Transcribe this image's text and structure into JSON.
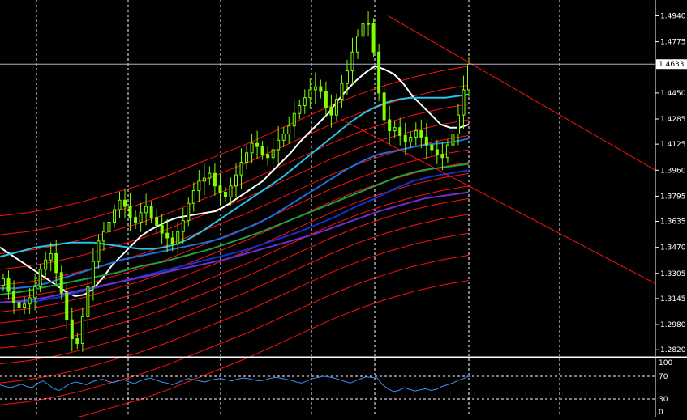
{
  "chart_data": [
    {
      "type": "candlestick",
      "panel": "main",
      "grid": true,
      "background": "#000000",
      "ylim": [
        1.278,
        1.504
      ],
      "y_ticks": [
        "1.4940",
        "1.4775",
        "1.4450",
        "1.4285",
        "1.4125",
        "1.3960",
        "1.3795",
        "1.3635",
        "1.3470",
        "1.3305",
        "1.3145",
        "1.2980",
        "1.2820"
      ],
      "current_price": "1.4633",
      "current_price_value": 1.4633,
      "candle_color": "#7fff00",
      "close_series": [
        1.327,
        1.319,
        1.312,
        1.309,
        1.311,
        1.315,
        1.322,
        1.333,
        1.339,
        1.343,
        1.331,
        1.318,
        1.301,
        1.289,
        1.286,
        1.303,
        1.322,
        1.338,
        1.351,
        1.357,
        1.363,
        1.371,
        1.377,
        1.373,
        1.366,
        1.363,
        1.369,
        1.373,
        1.366,
        1.361,
        1.356,
        1.353,
        1.349,
        1.357,
        1.364,
        1.375,
        1.383,
        1.389,
        1.391,
        1.394,
        1.386,
        1.382,
        1.379,
        1.386,
        1.393,
        1.401,
        1.407,
        1.413,
        1.411,
        1.406,
        1.404,
        1.409,
        1.415,
        1.419,
        1.424,
        1.432,
        1.437,
        1.442,
        1.447,
        1.449,
        1.446,
        1.436,
        1.431,
        1.441,
        1.451,
        1.459,
        1.471,
        1.481,
        1.489,
        1.489,
        1.471,
        1.445,
        1.428,
        1.421,
        1.423,
        1.418,
        1.414,
        1.417,
        1.421,
        1.417,
        1.412,
        1.409,
        1.406,
        1.404,
        1.412,
        1.419,
        1.431,
        1.447,
        1.4633
      ],
      "overlays": [
        {
          "name": "white",
          "color": "#ffffff",
          "values": [
            1.347,
            1.343,
            1.339,
            1.335,
            1.331,
            1.327,
            1.323,
            1.319,
            1.316,
            1.317,
            1.321,
            1.328,
            1.336,
            1.342,
            1.348,
            1.354,
            1.358,
            1.361,
            1.364,
            1.366,
            1.367,
            1.368,
            1.369,
            1.37,
            1.373,
            1.377,
            1.381,
            1.385,
            1.389,
            1.395,
            1.401,
            1.407,
            1.414,
            1.42,
            1.426,
            1.432,
            1.44,
            1.447,
            1.453,
            1.458,
            1.462,
            1.46,
            1.457,
            1.451,
            1.443,
            1.437,
            1.431,
            1.425,
            1.423,
            1.423,
            1.425
          ]
        },
        {
          "name": "cyan",
          "color": "#28c4e8",
          "values": [
            1.341,
            1.343,
            1.345,
            1.347,
            1.348,
            1.349,
            1.35,
            1.35,
            1.35,
            1.349,
            1.348,
            1.347,
            1.346,
            1.346,
            1.347,
            1.349,
            1.352,
            1.356,
            1.361,
            1.366,
            1.371,
            1.376,
            1.381,
            1.386,
            1.391,
            1.397,
            1.403,
            1.409,
            1.415,
            1.421,
            1.427,
            1.432,
            1.436,
            1.439,
            1.441,
            1.442,
            1.442,
            1.442,
            1.442,
            1.443,
            1.444
          ]
        },
        {
          "name": "blue",
          "color": "#1e6fe0",
          "values": [
            1.321,
            1.321,
            1.322,
            1.324,
            1.327,
            1.33,
            1.333,
            1.336,
            1.339,
            1.341,
            1.343,
            1.345,
            1.347,
            1.349,
            1.351,
            1.354,
            1.358,
            1.362,
            1.367,
            1.373,
            1.379,
            1.385,
            1.391,
            1.397,
            1.402,
            1.406,
            1.408,
            1.41,
            1.412,
            1.413,
            1.414,
            1.416
          ]
        },
        {
          "name": "navy",
          "color": "#1530d0",
          "values": [
            1.312,
            1.312,
            1.313,
            1.315,
            1.318,
            1.321,
            1.324,
            1.327,
            1.33,
            1.333,
            1.336,
            1.339,
            1.342,
            1.345,
            1.349,
            1.353,
            1.357,
            1.362,
            1.367,
            1.373,
            1.378,
            1.384,
            1.389,
            1.392,
            1.394,
            1.396
          ]
        },
        {
          "name": "purple",
          "color": "#7030d0",
          "values": [
            1.312,
            1.313,
            1.315,
            1.318,
            1.321,
            1.324,
            1.327,
            1.33,
            1.333,
            1.336,
            1.339,
            1.343,
            1.347,
            1.351,
            1.355,
            1.36,
            1.365,
            1.37,
            1.374,
            1.378,
            1.38,
            1.382
          ]
        },
        {
          "name": "green",
          "color": "#20a040",
          "values": [
            1.317,
            1.319,
            1.322,
            1.325,
            1.328,
            1.331,
            1.335,
            1.338,
            1.342,
            1.346,
            1.351,
            1.356,
            1.362,
            1.368,
            1.374,
            1.38,
            1.386,
            1.392,
            1.396,
            1.398,
            1.4
          ]
        }
      ],
      "bands": {
        "color": "#ff1010",
        "offsets": [
          0.072,
          0.06,
          0.048,
          0.038,
          0.028,
          0.019,
          0.011,
          0.004,
          -0.004,
          -0.012,
          -0.022,
          -0.034,
          -0.048,
          -0.064
        ]
      },
      "trendlines": [
        {
          "color": "#ff1010",
          "from": [
            0.592,
            1.494
          ],
          "to": [
            1.0,
            1.396
          ]
        },
        {
          "color": "#ff1010",
          "from": [
            0.52,
            1.4285
          ],
          "to": [
            1.0,
            1.324
          ]
        }
      ]
    },
    {
      "type": "line",
      "panel": "oscillator",
      "ylim": [
        0,
        100
      ],
      "y_ticks": [
        "100",
        "70",
        "30",
        "0"
      ],
      "levels": [
        70,
        30
      ],
      "color": "#3a8ff0",
      "values": [
        55,
        52,
        50,
        53,
        56,
        52,
        50,
        58,
        62,
        55,
        48,
        45,
        51,
        57,
        60,
        58,
        55,
        60,
        63,
        65,
        61,
        59,
        62,
        64,
        60,
        57,
        62,
        65,
        67,
        63,
        60,
        58,
        55,
        59,
        63,
        66,
        64,
        62,
        60,
        63,
        65,
        66,
        64,
        62,
        65,
        67,
        66,
        64,
        62,
        63,
        66,
        68,
        67,
        65,
        63,
        60,
        58,
        62,
        66,
        68,
        70,
        69,
        67,
        64,
        61,
        58,
        62,
        66,
        69,
        68,
        67,
        55,
        48,
        43,
        45,
        50,
        47,
        44,
        46,
        48,
        45,
        47,
        52,
        55,
        58,
        63,
        66,
        70
      ]
    }
  ]
}
